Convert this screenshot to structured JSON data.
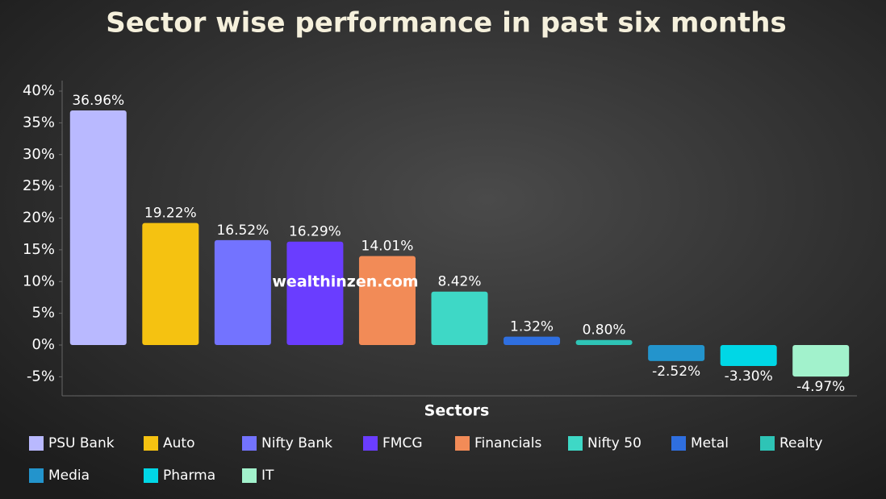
{
  "chart_data": {
    "type": "bar",
    "title": "Sector wise performance in past six months",
    "x_label": "Sectors",
    "watermark": "wealthinzen.com",
    "categories": [
      "PSU Bank",
      "Auto",
      "Nifty Bank",
      "FMCG",
      "Financials",
      "Nifty 50",
      "Metal",
      "Realty",
      "Media",
      "Pharma",
      "IT"
    ],
    "values": [
      36.96,
      19.22,
      16.52,
      16.29,
      14.01,
      8.42,
      1.32,
      0.8,
      -2.52,
      -3.3,
      -4.97
    ],
    "value_labels": [
      "36.96%",
      "19.22%",
      "16.52%",
      "16.29%",
      "14.01%",
      "8.42%",
      "1.32%",
      "0.80%",
      "-2.52%",
      "-3.30%",
      "-4.97%"
    ],
    "colors": [
      "#b9b9ff",
      "#f5c211",
      "#7373ff",
      "#6a3dff",
      "#f28b57",
      "#3ed8c6",
      "#2f6fe0",
      "#2ec4b6",
      "#2394cc",
      "#00d7e6",
      "#a2f2cc"
    ],
    "ylim": [
      -8,
      40
    ],
    "yticks": [
      {
        "value": -5,
        "label": "-5%"
      },
      {
        "value": 0,
        "label": "0%"
      },
      {
        "value": 5,
        "label": "5%"
      },
      {
        "value": 10,
        "label": "10%"
      },
      {
        "value": 15,
        "label": "15%"
      },
      {
        "value": 20,
        "label": "20%"
      },
      {
        "value": 25,
        "label": "25%"
      },
      {
        "value": 30,
        "label": "30%"
      },
      {
        "value": 35,
        "label": "35%"
      },
      {
        "value": 40,
        "label": "40%"
      }
    ],
    "legend": true
  }
}
